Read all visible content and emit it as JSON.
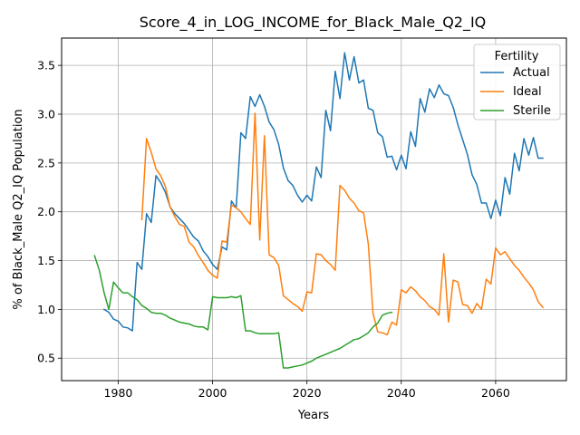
{
  "chart_data": {
    "type": "line",
    "title": "Score_4_in_LOG_INCOME_for_Black_Male_Q2_IQ",
    "xlabel": "Years",
    "ylabel": "% of Black_Male Q2_IQ Population",
    "xlim": [
      1968,
      2075
    ],
    "ylim": [
      0.27,
      3.78
    ],
    "xticks": [
      1980,
      2000,
      2020,
      2040,
      2060
    ],
    "yticks": [
      0.5,
      1.0,
      1.5,
      2.0,
      2.5,
      3.0,
      3.5
    ],
    "xtick_labels": [
      "1980",
      "2000",
      "2020",
      "2040",
      "2060"
    ],
    "ytick_labels": [
      "0.5",
      "1.0",
      "1.5",
      "2.0",
      "2.5",
      "3.0",
      "3.5"
    ],
    "grid": true,
    "legend": {
      "title": "Fertility",
      "position": "upper right"
    },
    "series": [
      {
        "name": "Actual",
        "color": "#1f77b4",
        "points": [
          [
            1977,
            1.0
          ],
          [
            1978,
            0.97
          ],
          [
            1979,
            0.9
          ],
          [
            1980,
            0.88
          ],
          [
            1981,
            0.82
          ],
          [
            1982,
            0.81
          ],
          [
            1983,
            0.78
          ],
          [
            1984,
            1.48
          ],
          [
            1985,
            1.41
          ],
          [
            1986,
            1.98
          ],
          [
            1987,
            1.89
          ],
          [
            1988,
            2.37
          ],
          [
            1989,
            2.3
          ],
          [
            1990,
            2.2
          ],
          [
            1991,
            2.05
          ],
          [
            1992,
            1.98
          ],
          [
            1993,
            1.93
          ],
          [
            1994,
            1.88
          ],
          [
            1995,
            1.81
          ],
          [
            1996,
            1.74
          ],
          [
            1997,
            1.7
          ],
          [
            1998,
            1.6
          ],
          [
            1999,
            1.54
          ],
          [
            2000,
            1.46
          ],
          [
            2001,
            1.41
          ],
          [
            2002,
            1.64
          ],
          [
            2003,
            1.61
          ],
          [
            2004,
            2.11
          ],
          [
            2005,
            2.04
          ],
          [
            2006,
            2.81
          ],
          [
            2007,
            2.75
          ],
          [
            2008,
            3.18
          ],
          [
            2009,
            3.08
          ],
          [
            2010,
            3.2
          ],
          [
            2011,
            3.08
          ],
          [
            2012,
            2.92
          ],
          [
            2013,
            2.84
          ],
          [
            2014,
            2.69
          ],
          [
            2015,
            2.45
          ],
          [
            2016,
            2.32
          ],
          [
            2017,
            2.27
          ],
          [
            2018,
            2.17
          ],
          [
            2019,
            2.1
          ],
          [
            2020,
            2.17
          ],
          [
            2021,
            2.11
          ],
          [
            2022,
            2.46
          ],
          [
            2023,
            2.35
          ],
          [
            2024,
            3.04
          ],
          [
            2025,
            2.83
          ],
          [
            2026,
            3.44
          ],
          [
            2027,
            3.16
          ],
          [
            2028,
            3.63
          ],
          [
            2029,
            3.35
          ],
          [
            2030,
            3.59
          ],
          [
            2031,
            3.32
          ],
          [
            2032,
            3.35
          ],
          [
            2033,
            3.06
          ],
          [
            2034,
            3.04
          ],
          [
            2035,
            2.81
          ],
          [
            2036,
            2.77
          ],
          [
            2037,
            2.56
          ],
          [
            2038,
            2.57
          ],
          [
            2039,
            2.43
          ],
          [
            2040,
            2.58
          ],
          [
            2041,
            2.44
          ],
          [
            2042,
            2.82
          ],
          [
            2043,
            2.67
          ],
          [
            2044,
            3.16
          ],
          [
            2045,
            3.02
          ],
          [
            2046,
            3.26
          ],
          [
            2047,
            3.17
          ],
          [
            2048,
            3.3
          ],
          [
            2049,
            3.21
          ],
          [
            2050,
            3.19
          ],
          [
            2051,
            3.07
          ],
          [
            2052,
            2.89
          ],
          [
            2053,
            2.74
          ],
          [
            2054,
            2.59
          ],
          [
            2055,
            2.38
          ],
          [
            2056,
            2.28
          ],
          [
            2057,
            2.09
          ],
          [
            2058,
            2.09
          ],
          [
            2059,
            1.93
          ],
          [
            2060,
            2.12
          ],
          [
            2061,
            1.96
          ],
          [
            2062,
            2.35
          ],
          [
            2063,
            2.18
          ],
          [
            2064,
            2.6
          ],
          [
            2065,
            2.42
          ],
          [
            2066,
            2.75
          ],
          [
            2067,
            2.58
          ],
          [
            2068,
            2.76
          ],
          [
            2069,
            2.55
          ],
          [
            2070,
            2.55
          ]
        ]
      },
      {
        "name": "Ideal",
        "color": "#ff7f0e",
        "points": [
          [
            1985,
            1.92
          ],
          [
            1986,
            2.75
          ],
          [
            1987,
            2.61
          ],
          [
            1988,
            2.44
          ],
          [
            1989,
            2.37
          ],
          [
            1990,
            2.26
          ],
          [
            1991,
            2.05
          ],
          [
            1992,
            1.95
          ],
          [
            1993,
            1.87
          ],
          [
            1994,
            1.85
          ],
          [
            1995,
            1.69
          ],
          [
            1996,
            1.64
          ],
          [
            1997,
            1.55
          ],
          [
            1998,
            1.48
          ],
          [
            1999,
            1.4
          ],
          [
            2000,
            1.35
          ],
          [
            2001,
            1.32
          ],
          [
            2002,
            1.7
          ],
          [
            2003,
            1.69
          ],
          [
            2004,
            2.07
          ],
          [
            2005,
            2.04
          ],
          [
            2006,
            2.0
          ],
          [
            2007,
            1.93
          ],
          [
            2008,
            1.87
          ],
          [
            2009,
            3.01
          ],
          [
            2010,
            1.71
          ],
          [
            2011,
            2.78
          ],
          [
            2012,
            1.56
          ],
          [
            2013,
            1.53
          ],
          [
            2014,
            1.45
          ],
          [
            2015,
            1.14
          ],
          [
            2016,
            1.1
          ],
          [
            2017,
            1.06
          ],
          [
            2018,
            1.03
          ],
          [
            2019,
            0.98
          ],
          [
            2020,
            1.18
          ],
          [
            2021,
            1.17
          ],
          [
            2022,
            1.57
          ],
          [
            2023,
            1.56
          ],
          [
            2024,
            1.5
          ],
          [
            2025,
            1.46
          ],
          [
            2026,
            1.4
          ],
          [
            2027,
            2.27
          ],
          [
            2028,
            2.22
          ],
          [
            2029,
            2.14
          ],
          [
            2030,
            2.09
          ],
          [
            2031,
            2.01
          ],
          [
            2032,
            1.99
          ],
          [
            2033,
            1.67
          ],
          [
            2034,
            0.96
          ],
          [
            2035,
            0.77
          ],
          [
            2036,
            0.76
          ],
          [
            2037,
            0.74
          ],
          [
            2038,
            0.87
          ],
          [
            2039,
            0.84
          ],
          [
            2040,
            1.2
          ],
          [
            2041,
            1.17
          ],
          [
            2042,
            1.23
          ],
          [
            2043,
            1.19
          ],
          [
            2044,
            1.13
          ],
          [
            2045,
            1.09
          ],
          [
            2046,
            1.03
          ],
          [
            2047,
            1.0
          ],
          [
            2048,
            0.94
          ],
          [
            2049,
            1.57
          ],
          [
            2050,
            0.87
          ],
          [
            2051,
            1.3
          ],
          [
            2052,
            1.28
          ],
          [
            2053,
            1.05
          ],
          [
            2054,
            1.04
          ],
          [
            2055,
            0.96
          ],
          [
            2056,
            1.06
          ],
          [
            2057,
            1.0
          ],
          [
            2058,
            1.31
          ],
          [
            2059,
            1.26
          ],
          [
            2060,
            1.63
          ],
          [
            2061,
            1.56
          ],
          [
            2062,
            1.59
          ],
          [
            2063,
            1.52
          ],
          [
            2064,
            1.45
          ],
          [
            2065,
            1.4
          ],
          [
            2066,
            1.33
          ],
          [
            2067,
            1.27
          ],
          [
            2068,
            1.2
          ],
          [
            2069,
            1.08
          ],
          [
            2070,
            1.02
          ]
        ]
      },
      {
        "name": "Sterile",
        "color": "#2ca02c",
        "points": [
          [
            1975,
            1.55
          ],
          [
            1976,
            1.4
          ],
          [
            1977,
            1.17
          ],
          [
            1978,
            1.0
          ],
          [
            1979,
            1.28
          ],
          [
            1980,
            1.22
          ],
          [
            1981,
            1.17
          ],
          [
            1982,
            1.17
          ],
          [
            1983,
            1.13
          ],
          [
            1984,
            1.1
          ],
          [
            1985,
            1.04
          ],
          [
            1986,
            1.01
          ],
          [
            1987,
            0.97
          ],
          [
            1988,
            0.96
          ],
          [
            1989,
            0.96
          ],
          [
            1990,
            0.94
          ],
          [
            1991,
            0.91
          ],
          [
            1992,
            0.89
          ],
          [
            1993,
            0.87
          ],
          [
            1994,
            0.86
          ],
          [
            1995,
            0.85
          ],
          [
            1996,
            0.83
          ],
          [
            1997,
            0.82
          ],
          [
            1998,
            0.82
          ],
          [
            1999,
            0.79
          ],
          [
            2000,
            1.13
          ],
          [
            2001,
            1.12
          ],
          [
            2002,
            1.12
          ],
          [
            2003,
            1.12
          ],
          [
            2004,
            1.13
          ],
          [
            2005,
            1.12
          ],
          [
            2006,
            1.14
          ],
          [
            2007,
            0.78
          ],
          [
            2008,
            0.78
          ],
          [
            2009,
            0.76
          ],
          [
            2010,
            0.75
          ],
          [
            2011,
            0.75
          ],
          [
            2012,
            0.75
          ],
          [
            2013,
            0.75
          ],
          [
            2014,
            0.76
          ],
          [
            2015,
            0.4
          ],
          [
            2016,
            0.4
          ],
          [
            2017,
            0.41
          ],
          [
            2018,
            0.42
          ],
          [
            2019,
            0.43
          ],
          [
            2020,
            0.45
          ],
          [
            2021,
            0.47
          ],
          [
            2022,
            0.5
          ],
          [
            2023,
            0.52
          ],
          [
            2024,
            0.54
          ],
          [
            2025,
            0.56
          ],
          [
            2026,
            0.58
          ],
          [
            2027,
            0.6
          ],
          [
            2028,
            0.63
          ],
          [
            2029,
            0.66
          ],
          [
            2030,
            0.69
          ],
          [
            2031,
            0.7
          ],
          [
            2032,
            0.73
          ],
          [
            2033,
            0.76
          ],
          [
            2034,
            0.82
          ],
          [
            2035,
            0.86
          ],
          [
            2036,
            0.94
          ],
          [
            2037,
            0.96
          ],
          [
            2038,
            0.97
          ]
        ]
      }
    ]
  }
}
